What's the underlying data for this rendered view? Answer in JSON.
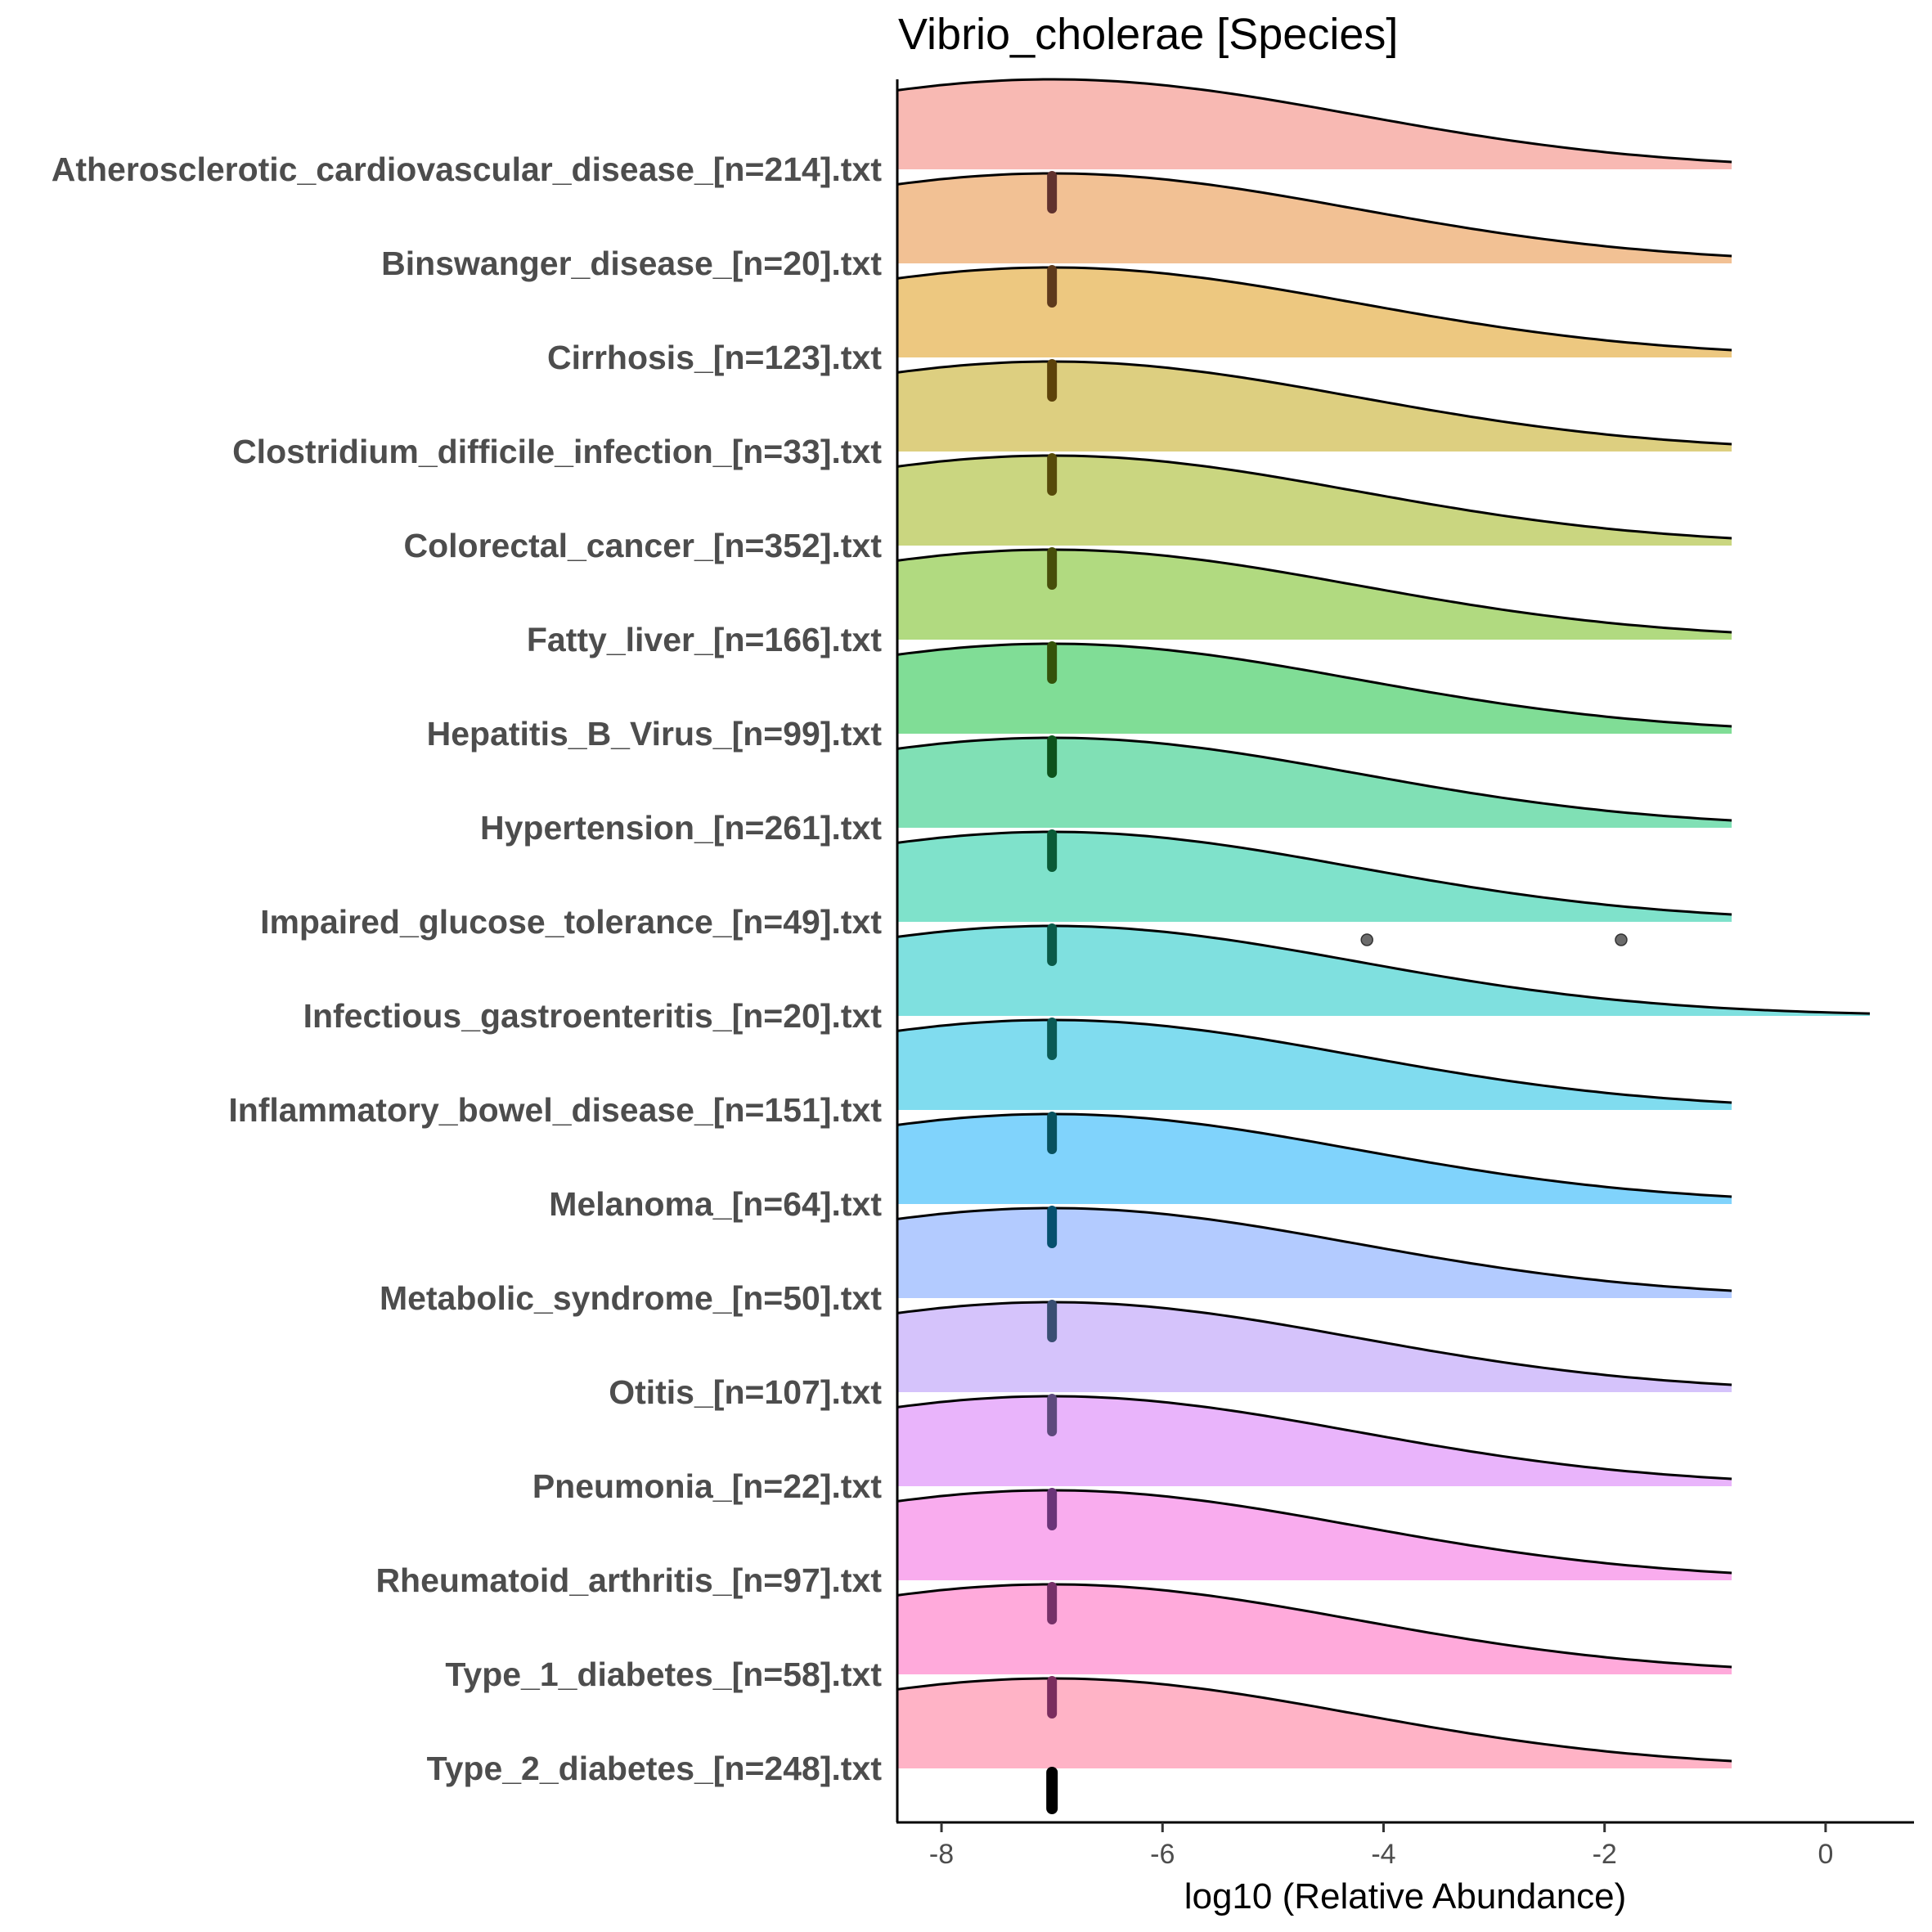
{
  "chart_data": {
    "type": "ridgeline",
    "title": "Vibrio_cholerae [Species]",
    "xlabel": "log10 (Relative Abundance)",
    "ylabel": "",
    "xlim": [
      -8.4,
      0.8
    ],
    "x_ticks": [
      {
        "value": -8,
        "label": "-8"
      },
      {
        "value": -6,
        "label": "-6"
      },
      {
        "value": -4,
        "label": "-4"
      },
      {
        "value": -2,
        "label": "-2"
      },
      {
        "value": 0,
        "label": "0"
      }
    ],
    "grid": false,
    "legend": "none",
    "density_mode": -7,
    "density_sd": 2.75,
    "density_x_end": -0.85,
    "wide_group_x_end": 0.4,
    "points_x": -7,
    "categories": [
      {
        "label": "Type_2_diabetes_[n=248].txt",
        "color": "#ffb3c6",
        "dot_color": "#7a2e4a",
        "outliers": []
      },
      {
        "label": "Type_1_diabetes_[n=58].txt",
        "color": "#ffaadb",
        "dot_color": "#7a2d5e",
        "outliers": []
      },
      {
        "label": "Rheumatoid_arthritis_[n=97].txt",
        "color": "#f9acee",
        "dot_color": "#753168",
        "outliers": []
      },
      {
        "label": "Pneumonia_[n=22].txt",
        "color": "#e9b4fb",
        "dot_color": "#6a3478",
        "outliers": []
      },
      {
        "label": "Otitis_[n=107].txt",
        "color": "#d5c3fb",
        "dot_color": "#5d4a7c",
        "outliers": []
      },
      {
        "label": "Metabolic_syndrome_[n=50].txt",
        "color": "#b3cbff",
        "dot_color": "#394e72",
        "outliers": []
      },
      {
        "label": "Melanoma_[n=64].txt",
        "color": "#80d3fc",
        "dot_color": "#06506e",
        "outliers": []
      },
      {
        "label": "Inflammatory_bowel_disease_[n=151].txt",
        "color": "#80dcef",
        "dot_color": "#08515e",
        "outliers": []
      },
      {
        "label": "Infectious_gastroenteritis_[n=20].txt",
        "color": "#7fe0df",
        "dot_color": "#0a5a55",
        "outliers": [],
        "wide": true
      },
      {
        "label": "Impaired_glucose_tolerance_[n=49].txt",
        "color": "#7fe2cb",
        "dot_color": "#0a5a48",
        "outliers": [
          -4.15,
          -1.85
        ]
      },
      {
        "label": "Hypertension_[n=261].txt",
        "color": "#80e0b5",
        "dot_color": "#0a5a36",
        "outliers": []
      },
      {
        "label": "Hepatitis_B_Virus_[n=99].txt",
        "color": "#80dd96",
        "dot_color": "#0d521c",
        "outliers": []
      },
      {
        "label": "Fatty_liver_[n=166].txt",
        "color": "#b1da80",
        "dot_color": "#34520a",
        "outliers": []
      },
      {
        "label": "Colorectal_cancer_[n=352].txt",
        "color": "#cad680",
        "dot_color": "#474e0a",
        "outliers": []
      },
      {
        "label": "Clostridium_difficile_infection_[n=33].txt",
        "color": "#ddcf80",
        "dot_color": "#564a0a",
        "outliers": []
      },
      {
        "label": "Cirrhosis_[n=123].txt",
        "color": "#edc880",
        "dot_color": "#5c420a",
        "outliers": []
      },
      {
        "label": "Binswanger_disease_[n=20].txt",
        "color": "#f2c194",
        "dot_color": "#5e3a1c",
        "outliers": []
      },
      {
        "label": "Atherosclerotic_cardiovascular_disease_[n=214].txt",
        "color": "#f8b9b3",
        "dot_color": "#60322e",
        "outliers": []
      }
    ]
  }
}
